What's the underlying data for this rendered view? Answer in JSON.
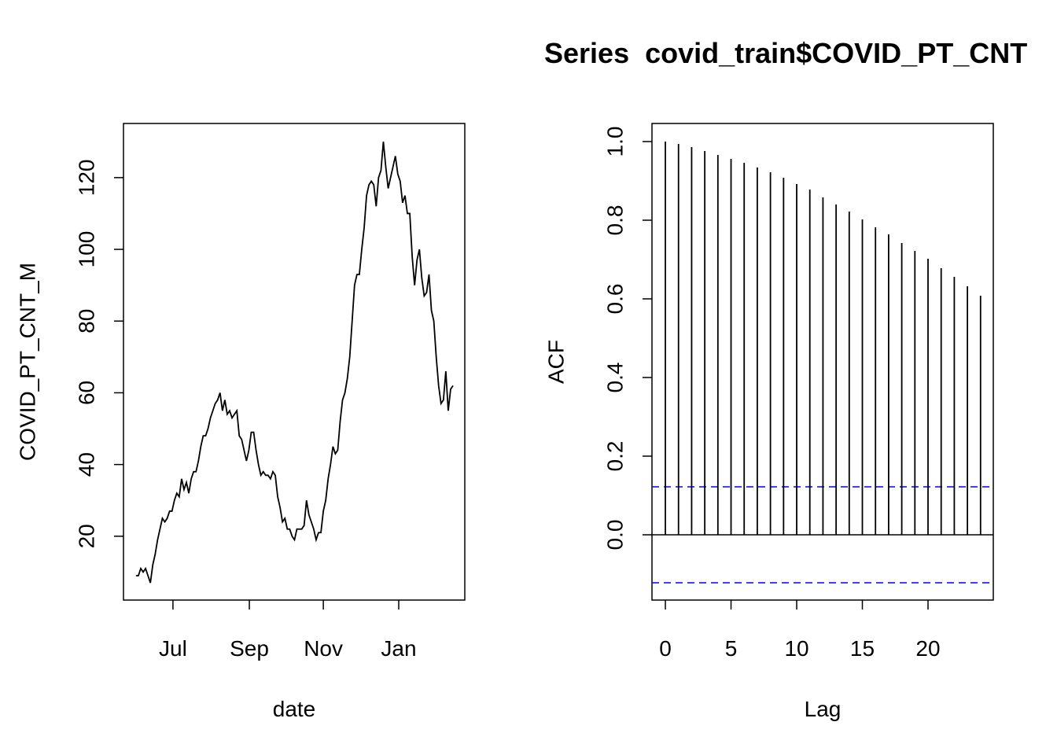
{
  "chart_data": [
    {
      "type": "line",
      "xlabel": "date",
      "ylabel": "COVID_PT_CNT_M",
      "color": "#000000",
      "x": [
        0,
        1,
        2,
        3,
        4,
        5,
        6,
        7,
        8,
        9,
        10,
        11,
        12,
        13,
        14,
        15,
        16,
        17,
        18,
        19,
        20,
        21,
        22,
        23,
        24,
        25,
        26,
        27,
        28,
        29,
        30,
        31,
        32,
        33,
        34,
        35,
        36,
        37,
        38,
        39,
        40,
        41,
        42,
        43,
        44,
        45,
        46,
        47,
        48,
        49,
        50,
        51,
        52,
        53,
        54,
        55,
        56,
        57,
        58,
        59,
        60,
        61,
        62,
        63,
        64,
        65,
        66,
        67,
        68,
        69,
        70,
        71,
        72,
        73,
        74,
        75,
        76,
        77,
        78,
        79,
        80,
        81,
        82,
        83,
        84,
        85,
        86,
        87,
        88,
        89,
        90,
        91,
        92,
        93,
        94,
        95,
        96,
        97,
        98,
        99,
        100,
        101,
        102,
        103,
        104,
        105,
        106,
        107,
        108,
        109,
        110,
        111,
        112,
        113,
        114,
        115,
        116,
        117,
        118,
        119,
        120,
        121,
        122,
        123,
        124,
        125,
        126,
        127,
        128,
        129,
        130,
        131,
        132
      ],
      "values": [
        9,
        9,
        11,
        10,
        11,
        9,
        7,
        12,
        15,
        19,
        22,
        25,
        24,
        25,
        27,
        27,
        30,
        32,
        31,
        36,
        33,
        35,
        32,
        36,
        38,
        38,
        41,
        45,
        48,
        48,
        50,
        53,
        55,
        57,
        58,
        60,
        55,
        58,
        54,
        55,
        53,
        54,
        55,
        48,
        47,
        44,
        41,
        44,
        49,
        49,
        44,
        40,
        37,
        38,
        37,
        37,
        36,
        38,
        37,
        31,
        28,
        24,
        25,
        22,
        22,
        20,
        19,
        22,
        22,
        22,
        23,
        30,
        26,
        24,
        22,
        19,
        21,
        21,
        27,
        30,
        36,
        40,
        45,
        43,
        44,
        52,
        58,
        60,
        64,
        70,
        80,
        90,
        93,
        93,
        100,
        106,
        115,
        118,
        119,
        118,
        112,
        120,
        122,
        130,
        123,
        117,
        120,
        123,
        126,
        121,
        119,
        113,
        115,
        110,
        110,
        98,
        90,
        97,
        100,
        92,
        87,
        88,
        93,
        83,
        80,
        70,
        62,
        57,
        58,
        66,
        55,
        61,
        62
      ],
      "xlim": [
        -5.2,
        136.9
      ],
      "xticks": [
        {
          "value": 15.4,
          "label": "Jul"
        },
        {
          "value": 47.2,
          "label": "Sep"
        },
        {
          "value": 78.0,
          "label": "Nov"
        },
        {
          "value": 109.4,
          "label": "Jan"
        }
      ],
      "ylim": [
        2.2,
        135.1
      ],
      "yticks": [
        20,
        40,
        60,
        80,
        100,
        120
      ]
    },
    {
      "type": "stem",
      "title": "Series  covid_train$COVID_PT_CNT",
      "xlabel": "Lag",
      "ylabel": "ACF",
      "color": "#000000",
      "x": [
        0,
        1,
        2,
        3,
        4,
        5,
        6,
        7,
        8,
        9,
        10,
        11,
        12,
        13,
        14,
        15,
        16,
        17,
        18,
        19,
        20,
        21,
        22,
        23,
        24
      ],
      "values": [
        1.0,
        0.994,
        0.986,
        0.976,
        0.966,
        0.956,
        0.946,
        0.934,
        0.922,
        0.908,
        0.892,
        0.878,
        0.858,
        0.84,
        0.822,
        0.802,
        0.782,
        0.764,
        0.742,
        0.722,
        0.702,
        0.678,
        0.656,
        0.632,
        0.608
      ],
      "conf_bounds": [
        0.122,
        -0.122
      ],
      "conf_color": "#0000ff",
      "xlim": [
        -1.02,
        24.97
      ],
      "xticks": [
        0,
        5,
        10,
        15,
        20
      ],
      "ylim": [
        -0.166,
        1.046
      ],
      "yticks": [
        {
          "value": 0,
          "label": "0.0"
        },
        0.2,
        0.4,
        0.6,
        0.8,
        {
          "value": 1,
          "label": "1.0"
        }
      ]
    }
  ]
}
